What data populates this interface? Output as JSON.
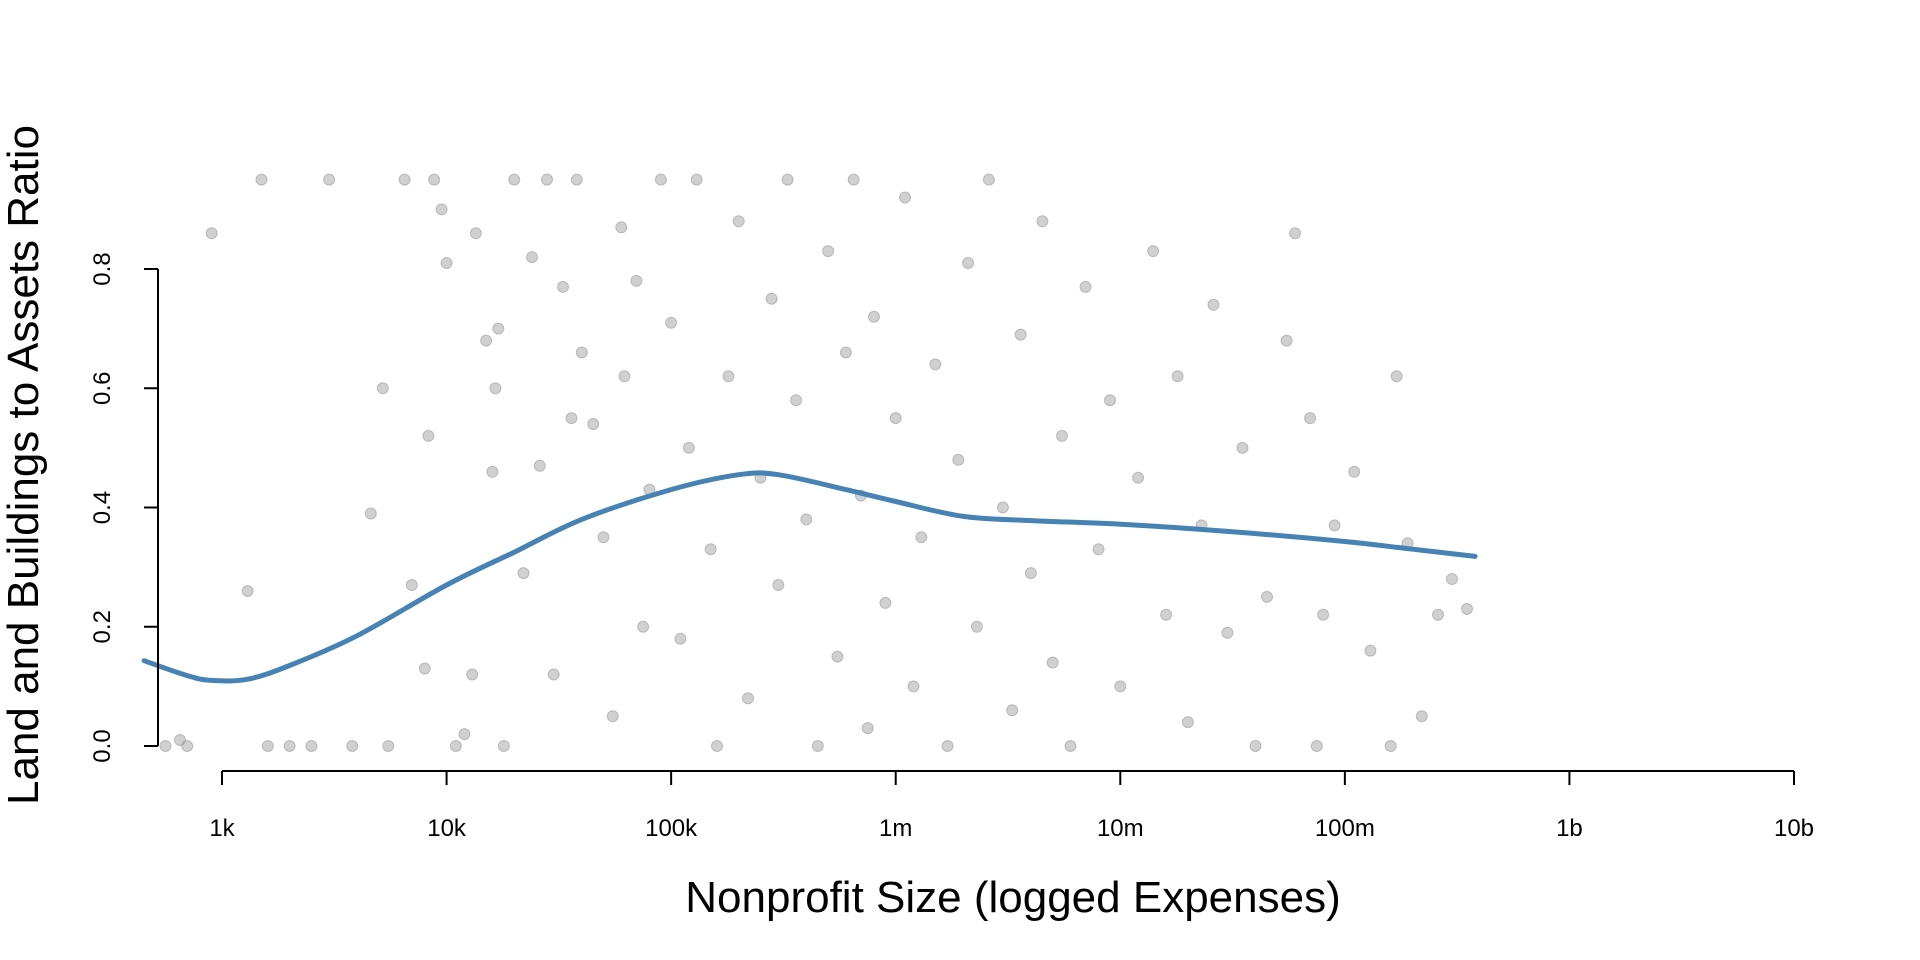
{
  "chart_data": {
    "type": "scatter",
    "title": "",
    "xlabel": "Nonprofit Size (logged Expenses)",
    "ylabel": "Land and Buildings to Assets Ratio",
    "x_scale": "log10",
    "xlim": [
      450,
      10000000000
    ],
    "ylim": [
      0,
      0.95
    ],
    "x_ticks": [
      {
        "value": 1000,
        "label": "1k"
      },
      {
        "value": 10000,
        "label": "10k"
      },
      {
        "value": 100000,
        "label": "100k"
      },
      {
        "value": 1000000,
        "label": "1m"
      },
      {
        "value": 10000000,
        "label": "10m"
      },
      {
        "value": 100000000,
        "label": "100m"
      },
      {
        "value": 1000000000,
        "label": "1b"
      },
      {
        "value": 10000000000,
        "label": "10b"
      }
    ],
    "y_ticks": [
      {
        "value": 0.0,
        "label": "0.0"
      },
      {
        "value": 0.2,
        "label": "0.2"
      },
      {
        "value": 0.4,
        "label": "0.4"
      },
      {
        "value": 0.6,
        "label": "0.6"
      },
      {
        "value": 0.8,
        "label": "0.8"
      }
    ],
    "grid": false,
    "series": [
      {
        "type": "scatter",
        "color": "#a9a9a9",
        "points": [
          [
            560,
            0.0
          ],
          [
            650,
            0.01
          ],
          [
            700,
            0.0
          ],
          [
            900,
            0.86
          ],
          [
            1300,
            0.26
          ],
          [
            1500,
            0.95
          ],
          [
            1600,
            0.0
          ],
          [
            2000,
            0.0
          ],
          [
            2500,
            0.0
          ],
          [
            3000,
            0.95
          ],
          [
            3800,
            0.0
          ],
          [
            4600,
            0.39
          ],
          [
            5200,
            0.6
          ],
          [
            5500,
            0.0
          ],
          [
            6500,
            0.95
          ],
          [
            7000,
            0.27
          ],
          [
            8000,
            0.13
          ],
          [
            8300,
            0.52
          ],
          [
            8800,
            0.95
          ],
          [
            9500,
            0.9
          ],
          [
            10000,
            0.81
          ],
          [
            11000,
            0.0
          ],
          [
            12000,
            0.02
          ],
          [
            13000,
            0.12
          ],
          [
            13500,
            0.86
          ],
          [
            15000,
            0.68
          ],
          [
            16000,
            0.46
          ],
          [
            16500,
            0.6
          ],
          [
            17000,
            0.7
          ],
          [
            18000,
            0.0
          ],
          [
            20000,
            0.95
          ],
          [
            22000,
            0.29
          ],
          [
            24000,
            0.82
          ],
          [
            26000,
            0.47
          ],
          [
            28000,
            0.95
          ],
          [
            30000,
            0.12
          ],
          [
            33000,
            0.77
          ],
          [
            36000,
            0.55
          ],
          [
            38000,
            0.95
          ],
          [
            40000,
            0.66
          ],
          [
            45000,
            0.54
          ],
          [
            50000,
            0.35
          ],
          [
            55000,
            0.05
          ],
          [
            60000,
            0.87
          ],
          [
            62000,
            0.62
          ],
          [
            70000,
            0.78
          ],
          [
            75000,
            0.2
          ],
          [
            80000,
            0.43
          ],
          [
            90000,
            0.95
          ],
          [
            100000,
            0.71
          ],
          [
            110000,
            0.18
          ],
          [
            120000,
            0.5
          ],
          [
            130000,
            0.95
          ],
          [
            150000,
            0.33
          ],
          [
            160000,
            0.0
          ],
          [
            180000,
            0.62
          ],
          [
            200000,
            0.88
          ],
          [
            220000,
            0.08
          ],
          [
            250000,
            0.45
          ],
          [
            280000,
            0.75
          ],
          [
            300000,
            0.27
          ],
          [
            330000,
            0.95
          ],
          [
            360000,
            0.58
          ],
          [
            400000,
            0.38
          ],
          [
            450000,
            0.0
          ],
          [
            500000,
            0.83
          ],
          [
            550000,
            0.15
          ],
          [
            600000,
            0.66
          ],
          [
            650000,
            0.95
          ],
          [
            700000,
            0.42
          ],
          [
            750000,
            0.03
          ],
          [
            800000,
            0.72
          ],
          [
            900000,
            0.24
          ],
          [
            1000000,
            0.55
          ],
          [
            1100000,
            0.92
          ],
          [
            1200000,
            0.1
          ],
          [
            1300000,
            0.35
          ],
          [
            1500000,
            0.64
          ],
          [
            1700000,
            0.0
          ],
          [
            1900000,
            0.48
          ],
          [
            2100000,
            0.81
          ],
          [
            2300000,
            0.2
          ],
          [
            2600000,
            0.95
          ],
          [
            3000000,
            0.4
          ],
          [
            3300000,
            0.06
          ],
          [
            3600000,
            0.69
          ],
          [
            4000000,
            0.29
          ],
          [
            4500000,
            0.88
          ],
          [
            5000000,
            0.14
          ],
          [
            5500000,
            0.52
          ],
          [
            6000000,
            0.0
          ],
          [
            7000000,
            0.77
          ],
          [
            8000000,
            0.33
          ],
          [
            9000000,
            0.58
          ],
          [
            10000000,
            0.1
          ],
          [
            12000000,
            0.45
          ],
          [
            14000000,
            0.83
          ],
          [
            16000000,
            0.22
          ],
          [
            18000000,
            0.62
          ],
          [
            20000000,
            0.04
          ],
          [
            23000000,
            0.37
          ],
          [
            26000000,
            0.74
          ],
          [
            30000000,
            0.19
          ],
          [
            35000000,
            0.5
          ],
          [
            40000000,
            0.0
          ],
          [
            45000000,
            0.25
          ],
          [
            55000000,
            0.68
          ],
          [
            60000000,
            0.86
          ],
          [
            70000000,
            0.55
          ],
          [
            75000000,
            0.0
          ],
          [
            80000000,
            0.22
          ],
          [
            90000000,
            0.37
          ],
          [
            110000000,
            0.46
          ],
          [
            130000000,
            0.16
          ],
          [
            160000000,
            0.0
          ],
          [
            170000000,
            0.62
          ],
          [
            190000000,
            0.34
          ],
          [
            220000000,
            0.05
          ],
          [
            260000000,
            0.22
          ],
          [
            300000000,
            0.28
          ],
          [
            350000000,
            0.23
          ]
        ]
      },
      {
        "type": "line",
        "name": "",
        "color": "#4682b4",
        "points": [
          [
            450,
            0.143
          ],
          [
            700,
            0.118
          ],
          [
            900,
            0.11
          ],
          [
            1300,
            0.112
          ],
          [
            2000,
            0.135
          ],
          [
            4000,
            0.185
          ],
          [
            10000,
            0.27
          ],
          [
            20000,
            0.325
          ],
          [
            40000,
            0.38
          ],
          [
            100000,
            0.43
          ],
          [
            200000,
            0.455
          ],
          [
            300000,
            0.455
          ],
          [
            600000,
            0.43
          ],
          [
            1000000,
            0.41
          ],
          [
            2000000,
            0.385
          ],
          [
            4000000,
            0.378
          ],
          [
            10000000,
            0.372
          ],
          [
            30000000,
            0.36
          ],
          [
            100000000,
            0.343
          ],
          [
            200000000,
            0.33
          ],
          [
            380000000,
            0.318
          ]
        ]
      }
    ]
  }
}
